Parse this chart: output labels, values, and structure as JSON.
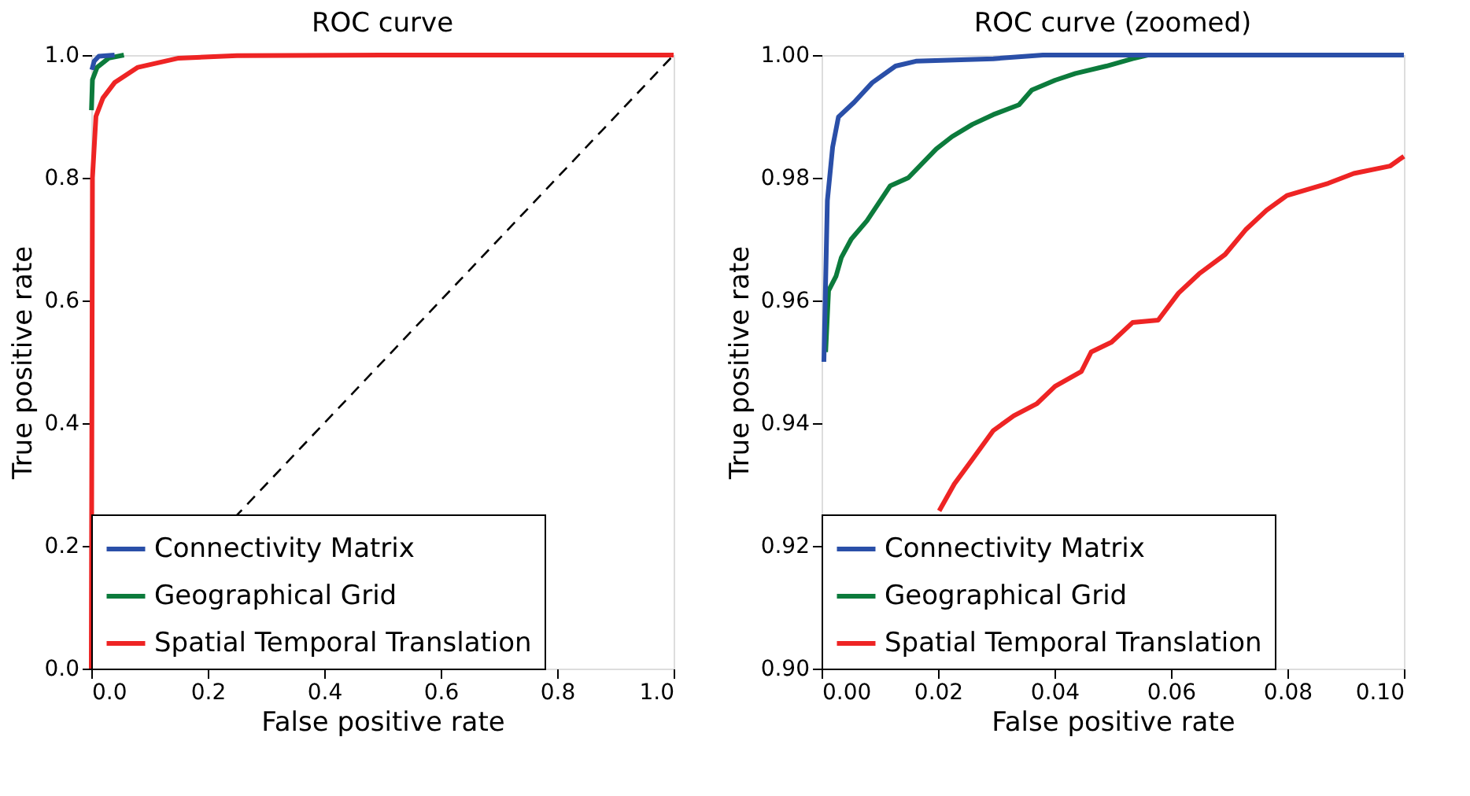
{
  "chart_data": [
    {
      "type": "line",
      "title": "ROC curve",
      "xlabel": "False positive rate",
      "ylabel": "True positive rate",
      "xlim": [
        0,
        1
      ],
      "ylim": [
        0,
        1
      ],
      "xticks": [
        {
          "value": 0,
          "label": "0.0"
        },
        {
          "value": 0.2,
          "label": "0.2"
        },
        {
          "value": 0.4,
          "label": "0.4"
        },
        {
          "value": 0.6,
          "label": "0.6"
        },
        {
          "value": 0.8,
          "label": "0.8"
        },
        {
          "value": 1,
          "label": "1.0"
        }
      ],
      "yticks": [
        {
          "value": 0,
          "label": "0.0"
        },
        {
          "value": 0.2,
          "label": "0.2"
        },
        {
          "value": 0.4,
          "label": "0.4"
        },
        {
          "value": 0.6,
          "label": "0.6"
        },
        {
          "value": 0.8,
          "label": "0.8"
        },
        {
          "value": 1,
          "label": "1.0"
        }
      ],
      "grid": false,
      "legend": "bottom",
      "marker": "none",
      "series": [
        {
          "name": "Connectivity Matrix",
          "color": "#2a4fa8",
          "x": [
            0.001,
            0.005,
            0.013,
            0.04
          ],
          "values": [
            0.976,
            0.99,
            0.998,
            1
          ]
        },
        {
          "name": "Geographical Grid",
          "color": "#0c7b3c",
          "x": [
            0.0003,
            0.002,
            0.01,
            0.03,
            0.056
          ],
          "values": [
            0.91,
            0.96,
            0.98,
            0.995,
            1
          ]
        },
        {
          "name": "Spatial Temporal Translation",
          "color": "#ee2424",
          "x": [
            0,
            0.002,
            0.008,
            0.02,
            0.04,
            0.08,
            0.15,
            0.25,
            0.5,
            1
          ],
          "values": [
            0,
            0.8,
            0.9,
            0.93,
            0.955,
            0.98,
            0.995,
            0.999,
            1,
            1
          ]
        },
        {
          "color": "#000000",
          "line_style": "dashed",
          "x": [
            0,
            1
          ],
          "values": [
            0,
            1
          ]
        }
      ]
    },
    {
      "type": "line",
      "title": "ROC curve (zoomed)",
      "xlabel": "False positive rate",
      "ylabel": "True positive rate",
      "xlim": [
        0,
        0.1
      ],
      "ylim": [
        0.9,
        1
      ],
      "xticks": [
        {
          "value": 0,
          "label": "0.00"
        },
        {
          "value": 0.02,
          "label": "0.02"
        },
        {
          "value": 0.04,
          "label": "0.04"
        },
        {
          "value": 0.06,
          "label": "0.06"
        },
        {
          "value": 0.08,
          "label": "0.08"
        },
        {
          "value": 0.1,
          "label": "0.10"
        }
      ],
      "yticks": [
        {
          "value": 0.9,
          "label": "0.90"
        },
        {
          "value": 0.92,
          "label": "0.92"
        },
        {
          "value": 0.94,
          "label": "0.94"
        },
        {
          "value": 0.96,
          "label": "0.96"
        },
        {
          "value": 0.98,
          "label": "0.98"
        },
        {
          "value": 1,
          "label": "1.00"
        }
      ],
      "grid": false,
      "legend": "bottom",
      "marker": "none",
      "series": [
        {
          "name": "Connectivity Matrix",
          "color": "#2a4fa8",
          "x": [
            0.0004,
            0.001,
            0.0019,
            0.0029,
            0.0056,
            0.0087,
            0.0127,
            0.0162,
            0.0295,
            0.038,
            0.1
          ],
          "values": [
            0.95,
            0.9763,
            0.985,
            0.9899,
            0.9923,
            0.9955,
            0.9982,
            0.999,
            0.9994,
            1,
            1
          ]
        },
        {
          "name": "Geographical Grid",
          "color": "#0c7b3c",
          "x": [
            0.0007,
            0.0012,
            0.0025,
            0.0034,
            0.0051,
            0.0078,
            0.0118,
            0.0149,
            0.0197,
            0.0224,
            0.0259,
            0.0295,
            0.0339,
            0.0361,
            0.0401,
            0.0436,
            0.0489,
            0.0534,
            0.056,
            0.1
          ],
          "values": [
            0.9516,
            0.9616,
            0.964,
            0.967,
            0.97,
            0.973,
            0.9787,
            0.98,
            0.9847,
            0.9867,
            0.9887,
            0.9903,
            0.9919,
            0.9943,
            0.9959,
            0.997,
            0.9982,
            0.9994,
            1,
            1
          ]
        },
        {
          "name": "Spatial Temporal Translation",
          "color": "#ee2424",
          "x": [
            0.0202,
            0.0228,
            0.0259,
            0.0295,
            0.033,
            0.037,
            0.0401,
            0.0446,
            0.0463,
            0.0498,
            0.0534,
            0.0578,
            0.0613,
            0.0649,
            0.0693,
            0.0728,
            0.0764,
            0.0799,
            0.087,
            0.0914,
            0.0976,
            0.1
          ],
          "values": [
            0.9257,
            0.9301,
            0.9341,
            0.9388,
            0.9412,
            0.9432,
            0.946,
            0.9484,
            0.9516,
            0.9532,
            0.9564,
            0.9568,
            0.9612,
            0.9644,
            0.9675,
            0.9715,
            0.9747,
            0.9771,
            0.9791,
            0.9807,
            0.9819,
            0.9835
          ]
        }
      ]
    }
  ]
}
